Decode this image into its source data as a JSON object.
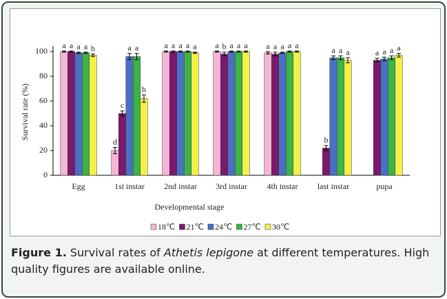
{
  "chart_data": {
    "type": "bar",
    "x_label": "Developmental stage",
    "y_label": "Survival rate (%)",
    "categories": [
      "Egg",
      "1st instar",
      "2nd instar",
      "3rd instar",
      "4th instar",
      "last instar",
      "pupa"
    ],
    "series": [
      {
        "name": "18℃",
        "color": "#f4b6d6",
        "values": [
          100,
          20,
          100,
          100,
          99,
          null,
          null
        ],
        "errors": [
          0.5,
          2.5,
          0.5,
          0.5,
          1,
          null,
          null
        ],
        "letters": [
          "a",
          "d",
          "a",
          "a",
          "a",
          null,
          null
        ]
      },
      {
        "name": "21℃",
        "color": "#7b1a6c",
        "values": [
          100,
          50,
          100,
          98,
          98,
          22,
          93
        ],
        "errors": [
          0.5,
          2,
          0.5,
          1.5,
          1.5,
          2,
          1.5
        ],
        "letters": [
          "a",
          "c",
          "a",
          "b",
          "a",
          "b",
          "a"
        ]
      },
      {
        "name": "24℃",
        "color": "#4a6fc4",
        "values": [
          99,
          96,
          100,
          100,
          99,
          95,
          94
        ],
        "errors": [
          0.5,
          2.5,
          0.5,
          0.5,
          0.5,
          1.5,
          1.5
        ],
        "letters": [
          "a",
          "a",
          "a",
          "a",
          "a",
          "a",
          "a"
        ]
      },
      {
        "name": "27℃",
        "color": "#3cb449",
        "values": [
          99,
          96,
          100,
          100,
          100,
          95,
          95
        ],
        "errors": [
          0.5,
          2.5,
          0.5,
          0.5,
          0.5,
          1.5,
          1.5
        ],
        "letters": [
          "a",
          "a",
          "a",
          "a",
          "a",
          "a",
          "a"
        ]
      },
      {
        "name": "30℃",
        "color": "#f4f048",
        "values": [
          97,
          62,
          99,
          100,
          100,
          93,
          97
        ],
        "errors": [
          1,
          3,
          0.5,
          0.5,
          0.5,
          2,
          1.5
        ],
        "letters": [
          "b",
          "b",
          "a",
          "a",
          "a",
          "a",
          "a"
        ]
      }
    ],
    "ylim": [
      0,
      100
    ],
    "yticks": [
      0,
      20,
      40,
      60,
      80,
      100
    ],
    "grid": false,
    "legend": "bottom"
  },
  "caption": {
    "label": "Figure 1.",
    "before": "Survival rates of ",
    "species": "Athetis lepigone",
    "after": " at different temperatures. High quality figures are available online."
  }
}
